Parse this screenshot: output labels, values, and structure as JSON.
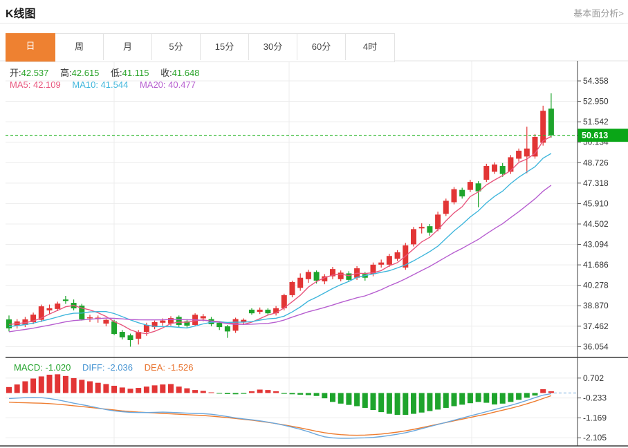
{
  "header": {
    "title": "K线图",
    "link_label": "基本面分析>"
  },
  "tabs": {
    "items": [
      "日",
      "周",
      "月",
      "5分",
      "15分",
      "30分",
      "60分",
      "4时"
    ],
    "selected_index": 0
  },
  "legend": {
    "open_label": "开:",
    "open_value": "42.537",
    "high_label": "高:",
    "high_value": "42.615",
    "low_label": "低:",
    "low_value": "41.115",
    "close_label": "收:",
    "close_value": "41.648",
    "ma5_label": "MA5:",
    "ma5_value": "42.109",
    "ma10_label": "MA10:",
    "ma10_value": "41.544",
    "ma20_label": "MA20:",
    "ma20_value": "40.477"
  },
  "macd_legend": {
    "macd_label": "MACD:",
    "macd_value": "-1.020",
    "diff_label": "DIFF:",
    "diff_value": "-2.036",
    "dea_label": "DEA:",
    "dea_value": "-1.526"
  },
  "colors": {
    "up_red": "#e23535",
    "down_green": "#1ea42c",
    "ma5": "#e8577e",
    "ma10": "#3fb6dc",
    "ma20": "#b75fd0",
    "diff_line": "#6aa7dc",
    "dea_line": "#ee7c2f",
    "price_line_green": "#2db82d",
    "badge_green": "#0aa617",
    "value_green": "#2aa42a",
    "accent_orange": "#ee8131",
    "macd_text_green": "#22a32b",
    "diff_text_blue": "#4795d3",
    "dea_text_orange": "#e8702a",
    "link_gray": "#9a9a9a",
    "grid": "#ececec",
    "axis_text": "#333333",
    "border_dark": "#3c3c3c",
    "border_light": "#e3e3e3"
  },
  "chart_data": {
    "type": "candlestick",
    "title": "K线图",
    "period_selected": "日",
    "legend_position": "top-left",
    "grid": true,
    "price_axis_ticks": [
      54.358,
      52.95,
      51.542,
      50.134,
      48.726,
      47.318,
      45.91,
      44.502,
      43.094,
      41.686,
      40.278,
      38.87,
      37.462,
      36.054
    ],
    "current_price": 50.613,
    "macd_axis_ticks": [
      0.702,
      -0.233,
      -1.169,
      -2.105
    ],
    "price_range": [
      35.31,
      55.74
    ],
    "macd_range": [
      -2.49,
      1.64
    ],
    "ma_windows": [
      5,
      10,
      20
    ],
    "candles_ohlc": [
      [
        37.93,
        38.2,
        37.1,
        37.31
      ],
      [
        37.5,
        37.95,
        37.3,
        37.79
      ],
      [
        37.55,
        38.1,
        37.4,
        37.93
      ],
      [
        37.74,
        38.4,
        37.6,
        38.26
      ],
      [
        37.9,
        38.95,
        37.75,
        38.83
      ],
      [
        38.55,
        38.95,
        38.3,
        38.7
      ],
      [
        38.65,
        39.15,
        38.5,
        39.02
      ],
      [
        39.3,
        39.55,
        39.0,
        39.2
      ],
      [
        39.07,
        39.3,
        38.55,
        38.69
      ],
      [
        38.88,
        39.0,
        37.85,
        37.93
      ],
      [
        38.0,
        38.25,
        37.75,
        38.07
      ],
      [
        37.95,
        38.2,
        37.7,
        38.05
      ],
      [
        37.64,
        37.95,
        37.45,
        37.9
      ],
      [
        37.79,
        37.9,
        36.85,
        36.93
      ],
      [
        37.07,
        37.2,
        36.55,
        36.69
      ],
      [
        36.83,
        36.95,
        36.05,
        36.5
      ],
      [
        36.6,
        37.2,
        36.2,
        37.07
      ],
      [
        37.07,
        37.7,
        36.8,
        37.55
      ],
      [
        37.4,
        37.85,
        37.25,
        37.74
      ],
      [
        37.7,
        38.0,
        37.5,
        37.85
      ],
      [
        37.64,
        38.15,
        37.5,
        38.02
      ],
      [
        38.1,
        38.2,
        37.4,
        37.55
      ],
      [
        37.8,
        37.95,
        37.35,
        37.5
      ],
      [
        37.55,
        38.35,
        37.45,
        38.25
      ],
      [
        38.0,
        38.3,
        37.8,
        38.15
      ],
      [
        37.95,
        38.1,
        37.45,
        37.6
      ],
      [
        37.7,
        37.8,
        37.2,
        37.4
      ],
      [
        37.45,
        37.55,
        36.66,
        37.1
      ],
      [
        37.15,
        38.05,
        37.0,
        37.95
      ],
      [
        37.75,
        38.0,
        37.55,
        37.9
      ],
      [
        38.6,
        38.7,
        38.25,
        38.35
      ],
      [
        38.45,
        38.75,
        38.3,
        38.6
      ],
      [
        38.6,
        38.7,
        38.2,
        38.35
      ],
      [
        38.35,
        38.85,
        38.2,
        38.7
      ],
      [
        38.7,
        39.7,
        38.55,
        39.6
      ],
      [
        39.6,
        40.6,
        39.45,
        40.5
      ],
      [
        40.1,
        41.1,
        39.9,
        40.8
      ],
      [
        40.7,
        41.35,
        40.45,
        41.2
      ],
      [
        41.2,
        41.3,
        40.4,
        40.6
      ],
      [
        40.55,
        41.05,
        40.35,
        40.9
      ],
      [
        40.9,
        41.55,
        40.7,
        41.4
      ],
      [
        40.7,
        41.3,
        40.55,
        41.15
      ],
      [
        41.1,
        41.25,
        40.5,
        40.65
      ],
      [
        40.8,
        41.6,
        40.65,
        41.45
      ],
      [
        41.05,
        41.2,
        40.6,
        40.8
      ],
      [
        41.05,
        41.85,
        40.9,
        41.7
      ],
      [
        41.7,
        42.05,
        41.5,
        41.85
      ],
      [
        41.7,
        42.45,
        41.55,
        42.3
      ],
      [
        42.1,
        42.7,
        41.95,
        42.55
      ],
      [
        41.5,
        43.2,
        41.35,
        43.03
      ],
      [
        43.1,
        44.3,
        42.95,
        44.15
      ],
      [
        44.2,
        44.55,
        43.85,
        44.3
      ],
      [
        44.35,
        44.5,
        43.7,
        43.9
      ],
      [
        44.15,
        45.35,
        44.0,
        45.15
      ],
      [
        45.2,
        46.25,
        45.05,
        46.1
      ],
      [
        46.0,
        47.05,
        45.85,
        46.9
      ],
      [
        46.85,
        47.0,
        46.25,
        46.4
      ],
      [
        46.85,
        47.55,
        46.7,
        47.4
      ],
      [
        47.3,
        47.45,
        45.65,
        46.75
      ],
      [
        47.55,
        48.65,
        47.4,
        48.5
      ],
      [
        48.1,
        48.75,
        47.95,
        48.6
      ],
      [
        48.5,
        48.7,
        47.75,
        47.95
      ],
      [
        48.1,
        49.25,
        47.95,
        49.1
      ],
      [
        49.0,
        49.7,
        48.8,
        49.55
      ],
      [
        49.15,
        51.2,
        48.0,
        49.7
      ],
      [
        49.15,
        50.7,
        49.0,
        50.5
      ],
      [
        50.1,
        52.65,
        49.9,
        52.3
      ],
      [
        52.45,
        53.5,
        50.45,
        50.613
      ]
    ],
    "pre_history_closes": [
      36.2,
      36.35,
      36.5,
      36.6,
      36.7,
      36.8,
      36.9,
      37.0,
      37.05,
      37.1,
      37.15,
      37.2,
      37.3,
      37.35,
      37.45,
      37.5,
      37.6,
      37.7,
      37.8
    ],
    "macd_histogram": [
      0.28,
      0.4,
      0.55,
      0.68,
      0.78,
      0.86,
      0.88,
      0.8,
      0.7,
      0.62,
      0.55,
      0.48,
      0.42,
      0.34,
      0.26,
      0.2,
      0.24,
      0.3,
      0.36,
      0.4,
      0.42,
      0.3,
      0.22,
      0.14,
      0.1,
      0.03,
      -0.03,
      -0.05,
      -0.06,
      -0.04,
      0.08,
      0.16,
      0.14,
      0.08,
      -0.04,
      -0.06,
      -0.08,
      -0.1,
      -0.14,
      -0.25,
      -0.42,
      -0.5,
      -0.56,
      -0.62,
      -0.7,
      -0.8,
      -0.9,
      -0.98,
      -1.03,
      -1.03,
      -0.98,
      -0.92,
      -0.85,
      -0.78,
      -0.7,
      -0.62,
      -0.55,
      -0.48,
      -0.42,
      -0.46,
      -0.54,
      -0.5,
      -0.42,
      -0.32,
      -0.22,
      -0.12,
      0.18,
      0.08
    ],
    "diff_line": [
      -0.26,
      -0.24,
      -0.22,
      -0.21,
      -0.22,
      -0.26,
      -0.32,
      -0.4,
      -0.48,
      -0.55,
      -0.62,
      -0.7,
      -0.78,
      -0.84,
      -0.88,
      -0.91,
      -0.92,
      -0.92,
      -0.91,
      -0.9,
      -0.91,
      -0.93,
      -0.95,
      -0.96,
      -0.97,
      -1.0,
      -1.05,
      -1.11,
      -1.17,
      -1.22,
      -1.26,
      -1.31,
      -1.37,
      -1.44,
      -1.52,
      -1.61,
      -1.71,
      -1.82,
      -1.95,
      -2.06,
      -2.11,
      -2.13,
      -2.13,
      -2.12,
      -2.11,
      -2.09,
      -2.05,
      -2.0,
      -1.94,
      -1.87,
      -1.78,
      -1.68,
      -1.58,
      -1.48,
      -1.38,
      -1.28,
      -1.18,
      -1.08,
      -0.98,
      -0.88,
      -0.78,
      -0.68,
      -0.58,
      -0.47,
      -0.35,
      -0.22,
      -0.1,
      -0.03
    ],
    "dea_line": [
      -0.43,
      -0.45,
      -0.46,
      -0.47,
      -0.48,
      -0.5,
      -0.53,
      -0.56,
      -0.6,
      -0.64,
      -0.68,
      -0.72,
      -0.76,
      -0.8,
      -0.84,
      -0.87,
      -0.9,
      -0.92,
      -0.94,
      -0.96,
      -0.98,
      -1.0,
      -1.02,
      -1.04,
      -1.06,
      -1.09,
      -1.12,
      -1.16,
      -1.2,
      -1.24,
      -1.28,
      -1.33,
      -1.38,
      -1.44,
      -1.5,
      -1.57,
      -1.64,
      -1.72,
      -1.8,
      -1.87,
      -1.92,
      -1.96,
      -1.98,
      -1.99,
      -1.98,
      -1.96,
      -1.93,
      -1.89,
      -1.84,
      -1.78,
      -1.71,
      -1.63,
      -1.55,
      -1.47,
      -1.39,
      -1.31,
      -1.23,
      -1.15,
      -1.07,
      -0.99,
      -0.9,
      -0.81,
      -0.72,
      -0.62,
      -0.51,
      -0.39,
      -0.26,
      -0.13
    ]
  }
}
